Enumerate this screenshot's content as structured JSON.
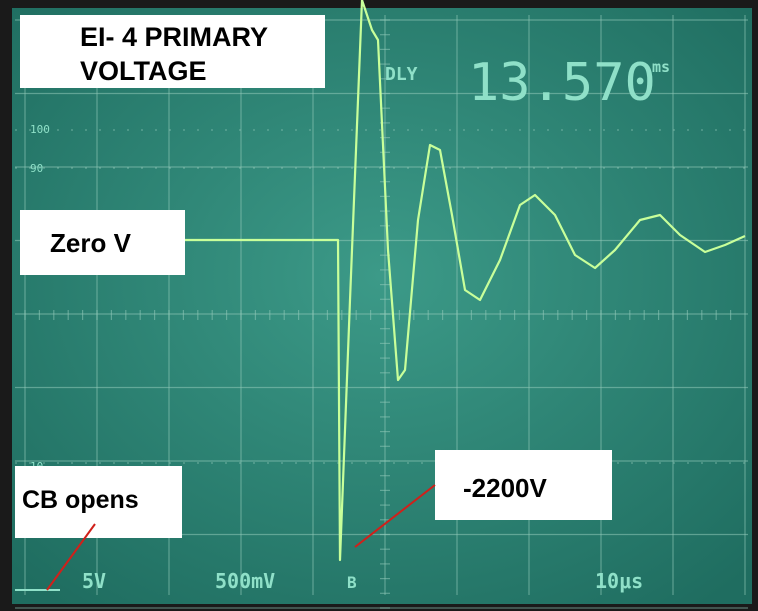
{
  "title_lines": [
    "EI- 4 PRIMARY",
    "VOLTAGE"
  ],
  "readout": {
    "mode": "DLY",
    "time": "13.570",
    "unit": "ms"
  },
  "scale_marks": [
    "100",
    "90",
    "10"
  ],
  "annotations": {
    "zero": "Zero V",
    "cb": "CB opens",
    "peak": "-2200V"
  },
  "settings": [
    "5V",
    "500mV",
    "B",
    "10μs"
  ]
}
